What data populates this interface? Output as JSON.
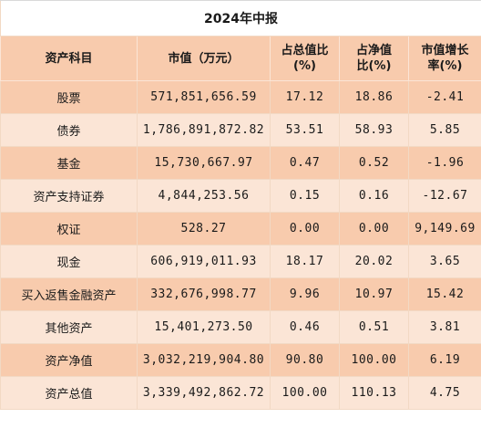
{
  "title": "2024年中报",
  "headers": [
    "资产科目",
    "市值（万元）",
    "占总值比\n(%)",
    "占净值\n比(%)",
    "市值增长\n率(%)"
  ],
  "rows": [
    {
      "name": "股票",
      "market_value": "571,851,656.59",
      "pct_total": "17.12",
      "pct_net": "18.86",
      "growth": "-2.41"
    },
    {
      "name": "债券",
      "market_value": "1,786,891,872.82",
      "pct_total": "53.51",
      "pct_net": "58.93",
      "growth": "5.85"
    },
    {
      "name": "基金",
      "market_value": "15,730,667.97",
      "pct_total": "0.47",
      "pct_net": "0.52",
      "growth": "-1.96"
    },
    {
      "name": "资产支持证券",
      "market_value": "4,844,253.56",
      "pct_total": "0.15",
      "pct_net": "0.16",
      "growth": "-12.67"
    },
    {
      "name": "权证",
      "market_value": "528.27",
      "pct_total": "0.00",
      "pct_net": "0.00",
      "growth": "9,149.69"
    },
    {
      "name": "现金",
      "market_value": "606,919,011.93",
      "pct_total": "18.17",
      "pct_net": "20.02",
      "growth": "3.65"
    },
    {
      "name": "买入返售金融资产",
      "market_value": "332,676,998.77",
      "pct_total": "9.96",
      "pct_net": "10.97",
      "growth": "15.42"
    },
    {
      "name": "其他资产",
      "market_value": "15,401,273.50",
      "pct_total": "0.46",
      "pct_net": "0.51",
      "growth": "3.81"
    },
    {
      "name": "资产净值",
      "market_value": "3,032,219,904.80",
      "pct_total": "90.80",
      "pct_net": "100.00",
      "growth": "6.19"
    },
    {
      "name": "资产总值",
      "market_value": "3,339,492,862.72",
      "pct_total": "100.00",
      "pct_net": "110.13",
      "growth": "4.75"
    }
  ],
  "colors": {
    "header_bg": "#f8cbad",
    "row_dark": "#f8cbad",
    "row_light": "#fbe5d6"
  }
}
